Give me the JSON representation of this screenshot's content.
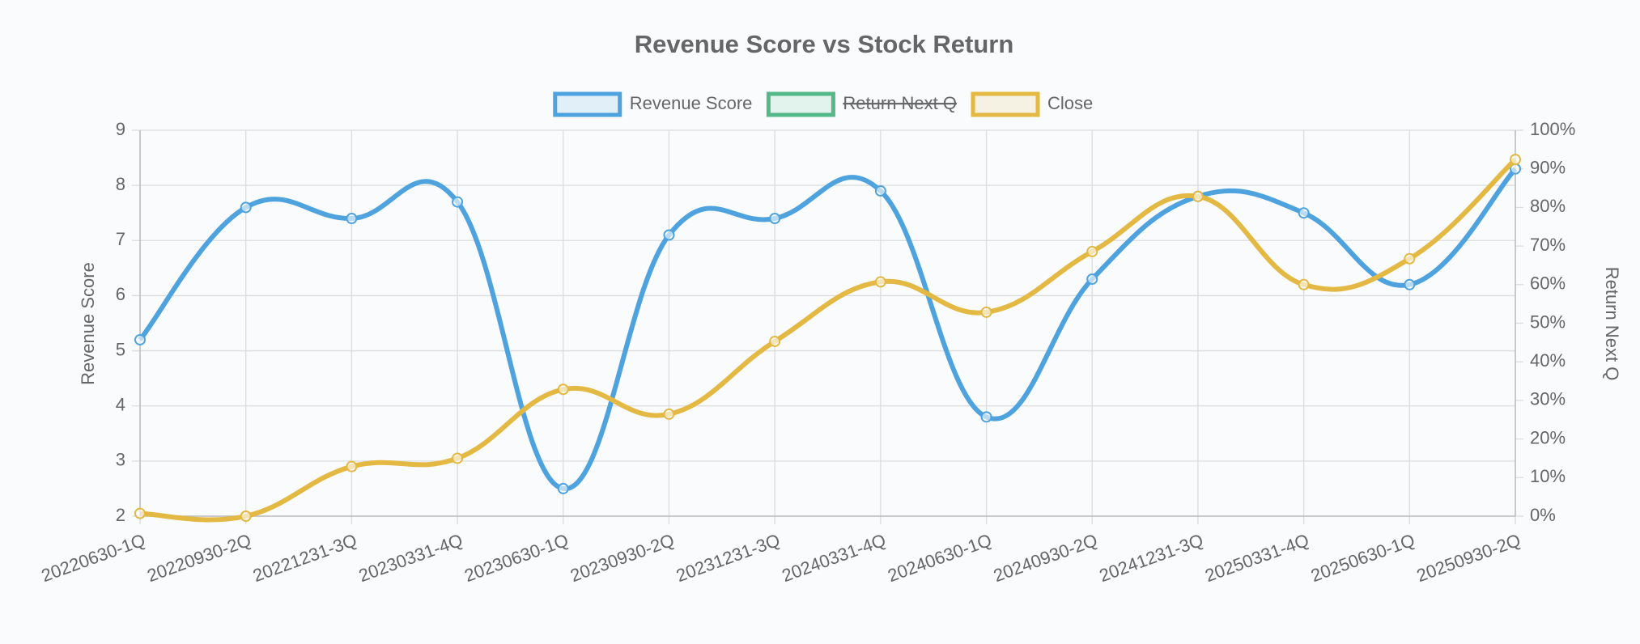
{
  "chart_data": {
    "type": "line",
    "title": "Revenue Score vs Stock Return",
    "categories": [
      "20220630-1Q",
      "20220930-2Q",
      "20221231-3Q",
      "20230331-4Q",
      "20230630-1Q",
      "20230930-2Q",
      "20231231-3Q",
      "20240331-4Q",
      "20240630-1Q",
      "20240930-2Q",
      "20241231-3Q",
      "20250331-4Q",
      "20250630-1Q",
      "20250930-2Q"
    ],
    "series": [
      {
        "name": "Revenue Score",
        "color": "#4ea3de",
        "values": [
          5.2,
          7.6,
          7.4,
          7.7,
          2.5,
          7.1,
          7.4,
          7.9,
          3.8,
          6.3,
          7.8,
          7.5,
          6.2,
          8.3
        ]
      },
      {
        "name": "Return Next Q",
        "color": "#55b888",
        "axis": "y2",
        "hidden": true,
        "values": [
          null,
          null,
          null,
          null,
          null,
          null,
          null,
          null,
          null,
          null,
          null,
          null,
          null,
          null
        ]
      },
      {
        "name": "Close",
        "color": "#e3b843",
        "values": [
          2.05,
          2.0,
          2.9,
          3.05,
          4.3,
          3.85,
          5.17,
          6.25,
          5.7,
          6.8,
          7.8,
          6.2,
          6.67,
          8.47
        ]
      }
    ],
    "ylabel": "Revenue Score",
    "y2label": "Return Next Q",
    "ylim": [
      2,
      9
    ],
    "yticks": [
      2,
      3,
      4,
      5,
      6,
      7,
      8,
      9
    ],
    "y2lim": [
      0,
      100
    ],
    "y2ticks": [
      {
        "value": 0,
        "label": "0%"
      },
      {
        "value": 10,
        "label": "10%"
      },
      {
        "value": 20,
        "label": "20%"
      },
      {
        "value": 30,
        "label": "30%"
      },
      {
        "value": 40,
        "label": "40%"
      },
      {
        "value": 50,
        "label": "50%"
      },
      {
        "value": 60,
        "label": "60%"
      },
      {
        "value": 70,
        "label": "70%"
      },
      {
        "value": 80,
        "label": "80%"
      },
      {
        "value": 90,
        "label": "90%"
      },
      {
        "value": 100,
        "label": "100%"
      }
    ],
    "grid": true,
    "legend": "top"
  }
}
